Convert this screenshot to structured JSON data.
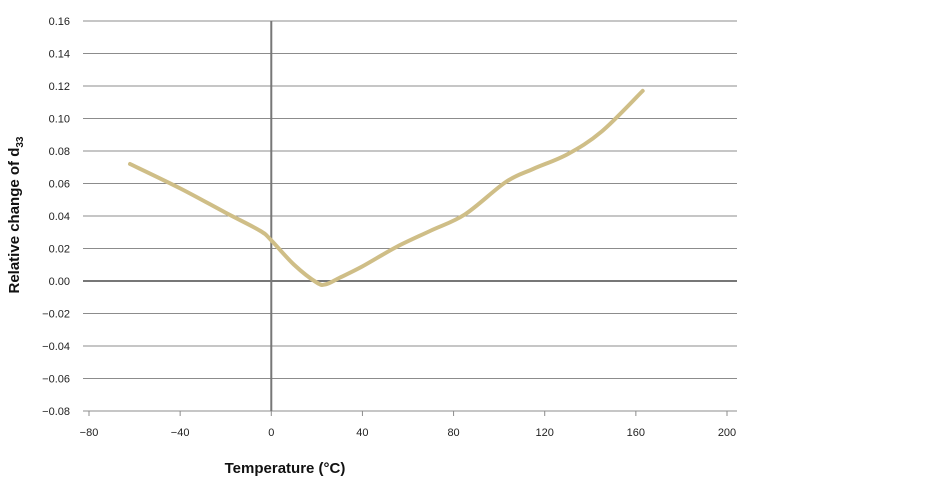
{
  "chart_data": {
    "type": "line",
    "title": "",
    "xlabel": "Temperature (°C)",
    "ylabel": {
      "text": "Relative change of d",
      "subscript": "33"
    },
    "xlim": [
      -80,
      200
    ],
    "ylim": [
      -0.08,
      0.16
    ],
    "x_ticks": [
      -80,
      -40,
      0,
      40,
      80,
      120,
      160,
      200
    ],
    "x_tick_labels": [
      "−80",
      "−40",
      "0",
      "40",
      "80",
      "120",
      "160",
      "200"
    ],
    "y_ticks": [
      0.16,
      0.14,
      0.12,
      0.1,
      0.08,
      0.06,
      0.04,
      0.02,
      0.0,
      -0.02,
      -0.04,
      -0.06,
      -0.08
    ],
    "y_tick_labels": [
      "0.16",
      "0.14",
      "0.12",
      "0.10",
      "0.08",
      "0.06",
      "0.04",
      "0.02",
      "0.00",
      "−0.02",
      "−0.04",
      "−0.06",
      "−0.08"
    ],
    "grid": "horizontal",
    "legend": "none",
    "colors": {
      "series": "#cfbe87",
      "grid": "#8c8c8c",
      "zero_axis": "#777777"
    },
    "series": [
      {
        "x": [
          -62,
          -40,
          -20,
          -5,
          0,
          10,
          20,
          24,
          30,
          40,
          55,
          70,
          85,
          103,
          115,
          130,
          145,
          163
        ],
        "y": [
          0.072,
          0.057,
          0.042,
          0.031,
          0.025,
          0.01,
          -0.001,
          -0.002,
          0.002,
          0.009,
          0.021,
          0.031,
          0.041,
          0.061,
          0.069,
          0.078,
          0.092,
          0.117
        ]
      }
    ]
  }
}
